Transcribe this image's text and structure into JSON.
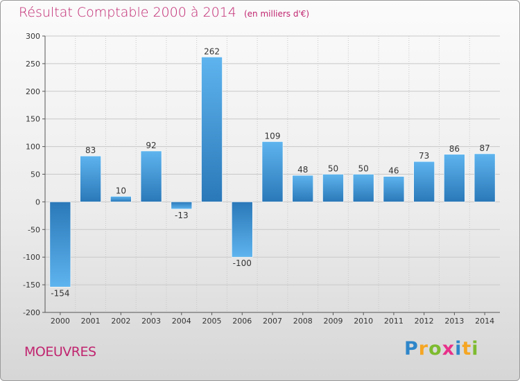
{
  "header": {
    "title": "Résultat Comptable 2000 à 2014",
    "unit": "(en milliers d'€)"
  },
  "footer": {
    "town": "MOEUVRES",
    "logo": {
      "letters": [
        "P",
        "r",
        "o",
        "x",
        "i",
        "t",
        "i"
      ],
      "colors": [
        "#2e86c9",
        "#f5a623",
        "#7dbb2f",
        "#e8308a",
        "#2e86c9",
        "#f5a623",
        "#7dbb2f"
      ]
    }
  },
  "chart_data": {
    "type": "bar",
    "title": "Résultat Comptable 2000 à 2014",
    "ylabel": "(en milliers d'€)",
    "xlabel": "",
    "categories": [
      "2000",
      "2001",
      "2002",
      "2003",
      "2004",
      "2005",
      "2006",
      "2007",
      "2008",
      "2009",
      "2010",
      "2011",
      "2012",
      "2013",
      "2014"
    ],
    "values": [
      -154,
      83,
      10,
      92,
      -13,
      262,
      -100,
      109,
      48,
      50,
      50,
      46,
      73,
      86,
      87
    ],
    "labels": [
      "-154",
      "83",
      "10",
      "92",
      "-13",
      "262",
      "-100",
      "109",
      "48",
      "50",
      "50",
      "46",
      "73",
      "86",
      "87"
    ],
    "ylim": [
      -200,
      300
    ],
    "yticks": [
      -200,
      -150,
      -100,
      -50,
      0,
      50,
      100,
      150,
      200,
      250,
      300
    ],
    "grid": true,
    "colors": {
      "bar_light": "#5eb4ee",
      "bar_dark": "#2a78b8",
      "grid": "#c8c8c8",
      "axis": "#555555",
      "text": "#333333"
    }
  }
}
